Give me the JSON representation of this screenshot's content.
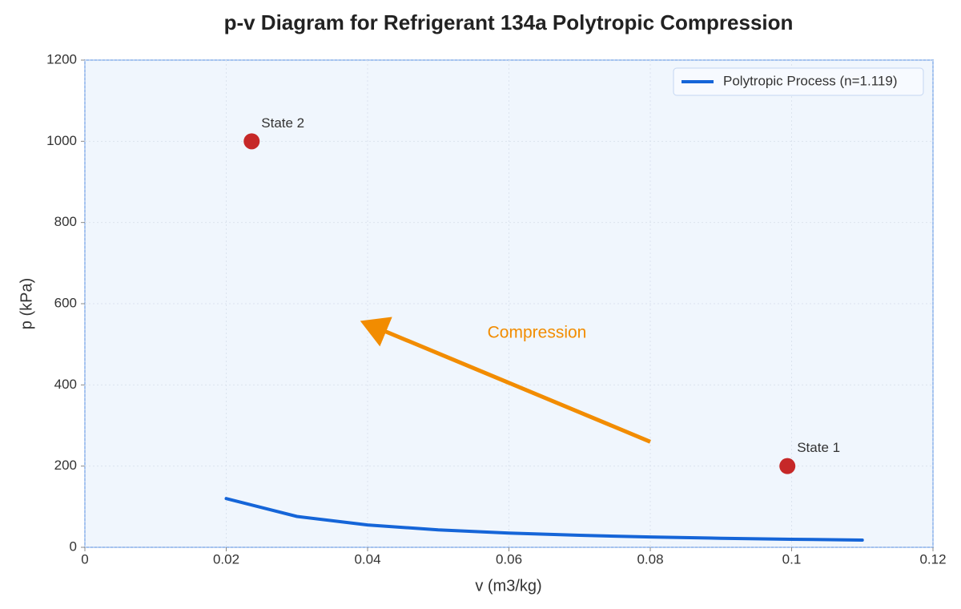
{
  "chart_data": {
    "type": "line",
    "title": "p-v Diagram for Refrigerant 134a Polytropic Compression",
    "xlabel": "v (m3/kg)",
    "ylabel": "p (kPa)",
    "series": [
      {
        "name": "Polytropic Process (n=1.119)",
        "color": "#1565d8",
        "x": [
          0.02,
          0.03,
          0.04,
          0.05,
          0.06,
          0.07,
          0.08,
          0.09,
          0.1,
          0.11
        ],
        "values": [
          120,
          76,
          55,
          43,
          35,
          29.5,
          25.4,
          22.3,
          19.8,
          17.8
        ]
      }
    ],
    "points": [
      {
        "label": "State 1",
        "x": 0.0994,
        "y": 200
      },
      {
        "label": "State 2",
        "x": 0.0236,
        "y": 1000
      }
    ],
    "point_color": "#c62828",
    "arrow": {
      "text": "Compression",
      "from": [
        0.08,
        260
      ],
      "to": [
        0.04,
        550
      ],
      "color": "#f28c00"
    },
    "xlim": [
      0,
      0.12
    ],
    "xticks": [
      0,
      0.02,
      0.04,
      0.06,
      0.08,
      0.1,
      0.12
    ],
    "ylim": [
      0,
      1200
    ],
    "yticks": [
      0,
      200,
      400,
      600,
      800,
      1000,
      1200
    ],
    "grid": true,
    "legend": "upper right"
  }
}
